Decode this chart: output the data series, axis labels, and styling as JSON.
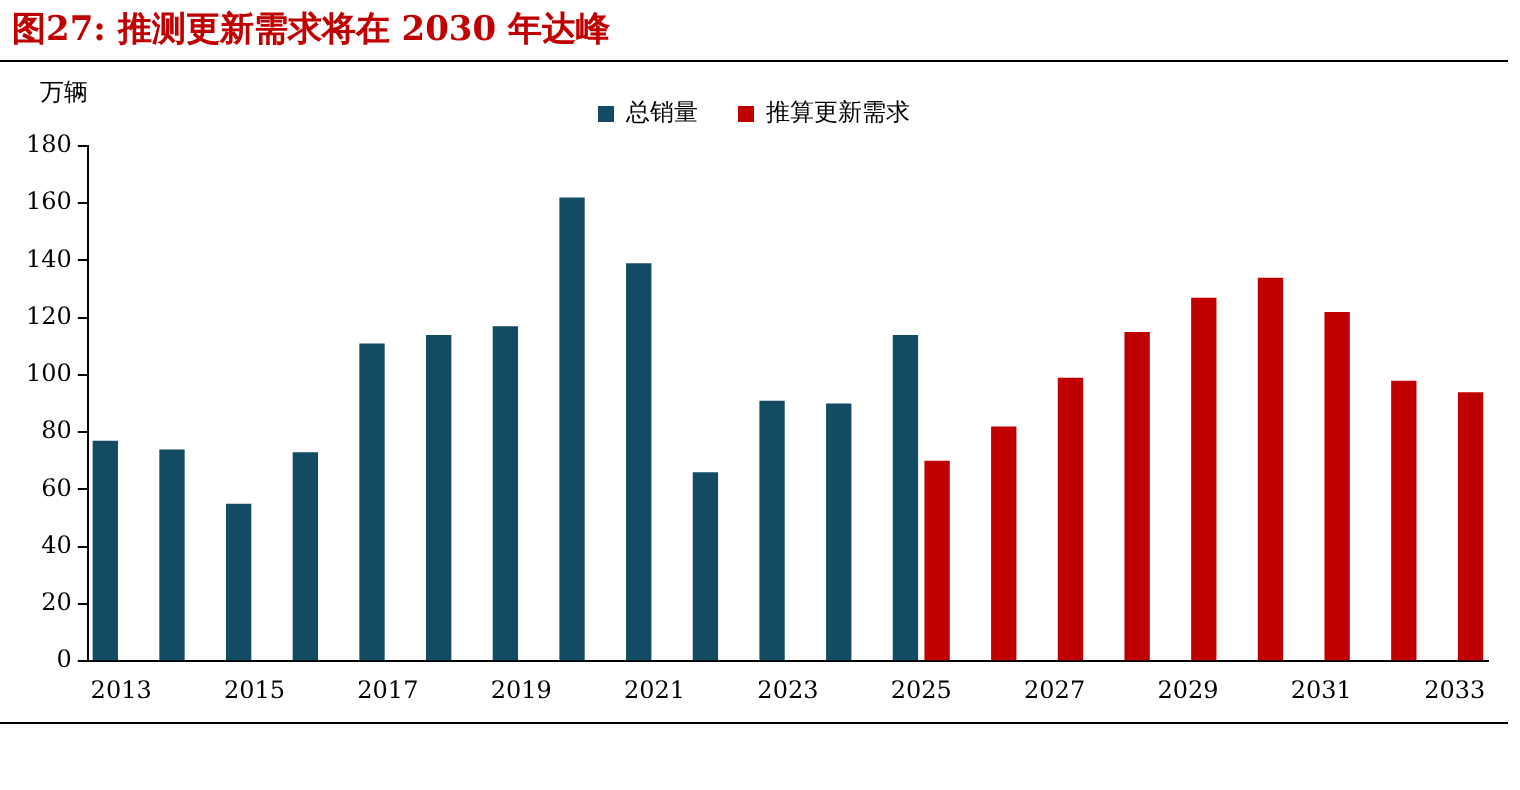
{
  "chart_data": {
    "type": "bar",
    "title": "图27:   推测更新需求将在 2030 年达峰",
    "ylabel": "万辆",
    "categories": [
      "2013",
      null,
      "2015",
      null,
      "2017",
      null,
      "2019",
      null,
      "2021",
      null,
      "2023",
      null,
      "2025",
      null,
      "2027",
      null,
      "2029",
      null,
      "2031",
      null,
      "2033"
    ],
    "series": [
      {
        "name": "总销量",
        "color": "#134b63",
        "values": [
          77,
          74,
          55,
          73,
          111,
          114,
          117,
          162,
          139,
          66,
          91,
          90,
          114,
          null,
          null,
          null,
          null,
          null,
          null,
          null,
          null
        ]
      },
      {
        "name": "推算更新需求",
        "color": "#c00000",
        "values": [
          null,
          null,
          null,
          null,
          null,
          null,
          null,
          null,
          null,
          null,
          null,
          null,
          70,
          82,
          99,
          115,
          127,
          134,
          122,
          98,
          94
        ]
      }
    ],
    "ylim": [
      0,
      180
    ],
    "yticks": [
      0,
      20,
      40,
      60,
      80,
      100,
      120,
      140,
      160,
      180
    ],
    "grid": false,
    "legend": "top"
  }
}
